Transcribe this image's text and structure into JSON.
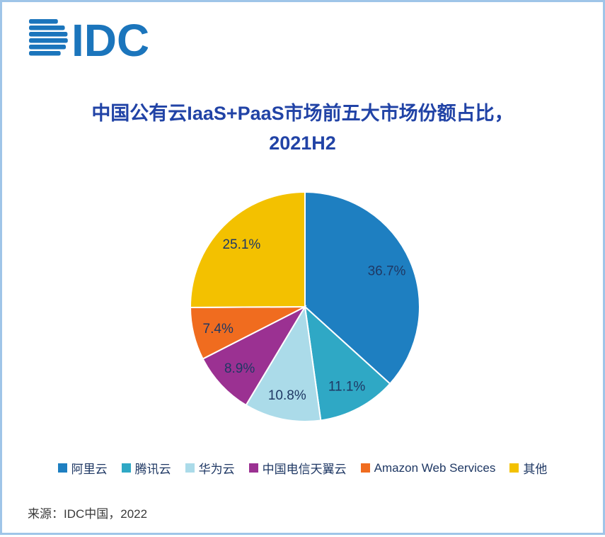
{
  "logo": {
    "text": "IDC",
    "color": "#1B75BC"
  },
  "title": {
    "line1": "中国公有云IaaS+PaaS市场前五大市场份额占比，",
    "line2": "2021H2",
    "color": "#2143A6"
  },
  "chart_data": {
    "type": "pie",
    "title": "中国公有云IaaS+PaaS市场前五大市场份额占比，2021H2",
    "start_angle_deg": 0,
    "direction": "clockwise",
    "label_color": "#1F3864",
    "legend_position": "bottom",
    "slices": [
      {
        "label": "阿里云",
        "value": 36.7,
        "display": "36.7%",
        "color": "#1E7FC1"
      },
      {
        "label": "腾讯云",
        "value": 11.1,
        "display": "11.1%",
        "color": "#2FA8C5"
      },
      {
        "label": "华为云",
        "value": 10.8,
        "display": "10.8%",
        "color": "#ABDBE9"
      },
      {
        "label": "中国电信天翼云",
        "value": 8.9,
        "display": "8.9%",
        "color": "#9B3192"
      },
      {
        "label": "Amazon Web Services",
        "value": 7.4,
        "display": "7.4%",
        "color": "#F06C1F"
      },
      {
        "label": "其他",
        "value": 25.1,
        "display": "25.1%",
        "color": "#F3C100"
      }
    ]
  },
  "source": {
    "text": "来源：IDC中国，2022"
  }
}
